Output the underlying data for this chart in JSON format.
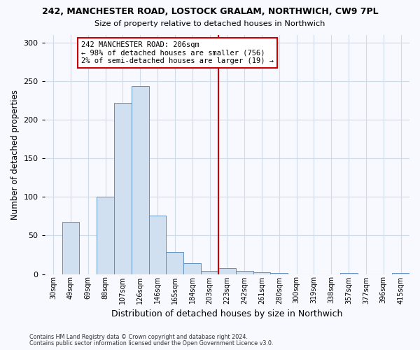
{
  "title": "242, MANCHESTER ROAD, LOSTOCK GRALAM, NORTHWICH, CW9 7PL",
  "subtitle": "Size of property relative to detached houses in Northwich",
  "xlabel": "Distribution of detached houses by size in Northwich",
  "ylabel": "Number of detached properties",
  "footnote1": "Contains HM Land Registry data © Crown copyright and database right 2024.",
  "footnote2": "Contains public sector information licensed under the Open Government Licence v3.0.",
  "bin_labels": [
    "30sqm",
    "49sqm",
    "69sqm",
    "88sqm",
    "107sqm",
    "126sqm",
    "146sqm",
    "165sqm",
    "184sqm",
    "203sqm",
    "223sqm",
    "242sqm",
    "261sqm",
    "280sqm",
    "300sqm",
    "319sqm",
    "338sqm",
    "357sqm",
    "377sqm",
    "396sqm",
    "415sqm"
  ],
  "bar_heights": [
    0,
    68,
    0,
    100,
    222,
    244,
    76,
    29,
    14,
    4,
    8,
    4,
    2,
    1,
    0,
    0,
    0,
    1,
    0,
    0,
    1
  ],
  "bar_color": "#d0e0f0",
  "bar_edge_color": "#6090c0",
  "grid_color": "#d0dce8",
  "vline_x_index": 9,
  "vline_color": "#cc0000",
  "annotation_title": "242 MANCHESTER ROAD: 206sqm",
  "annotation_line2": "← 98% of detached houses are smaller (756)",
  "annotation_line3": "2% of semi-detached houses are larger (19) →",
  "annotation_box_color": "#cc0000",
  "ylim": [
    0,
    310
  ],
  "yticks": [
    0,
    50,
    100,
    150,
    200,
    250,
    300
  ],
  "background_color": "#f8f8ff"
}
